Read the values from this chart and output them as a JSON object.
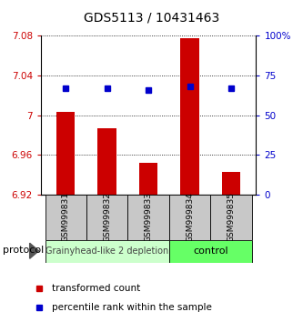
{
  "title": "GDS5113 / 10431463",
  "samples": [
    "GSM999831",
    "GSM999832",
    "GSM999833",
    "GSM999834",
    "GSM999835"
  ],
  "bar_values": [
    7.003,
    6.987,
    6.952,
    7.077,
    6.943
  ],
  "bar_bottom": 6.92,
  "percentile_values": [
    67,
    67,
    66,
    68,
    67
  ],
  "ylim_left": [
    6.92,
    7.08
  ],
  "yticks_left": [
    6.92,
    6.96,
    7.0,
    7.04,
    7.08
  ],
  "ytick_labels_left": [
    "6.92",
    "6.96",
    "7",
    "7.04",
    "7.08"
  ],
  "yticks_right_pct": [
    0,
    25,
    50,
    75,
    100
  ],
  "ytick_labels_right": [
    "0",
    "25",
    "50",
    "75",
    "100%"
  ],
  "bar_color": "#cc0000",
  "dot_color": "#0000cc",
  "ylabel_left_color": "#cc0000",
  "ylabel_right_color": "#0000cc",
  "group1_label": "Grainyhead-like 2 depletion",
  "group2_label": "control",
  "group1_color": "#ccffcc",
  "group2_color": "#66ff66",
  "group1_indices": [
    0,
    1,
    2
  ],
  "group2_indices": [
    3,
    4
  ],
  "protocol_label": "protocol",
  "legend_bar_label": "transformed count",
  "legend_dot_label": "percentile rank within the sample",
  "title_fontsize": 10,
  "tick_fontsize": 7.5,
  "sample_fontsize": 6.5,
  "legend_fontsize": 7.5,
  "group_fontsize": 7
}
